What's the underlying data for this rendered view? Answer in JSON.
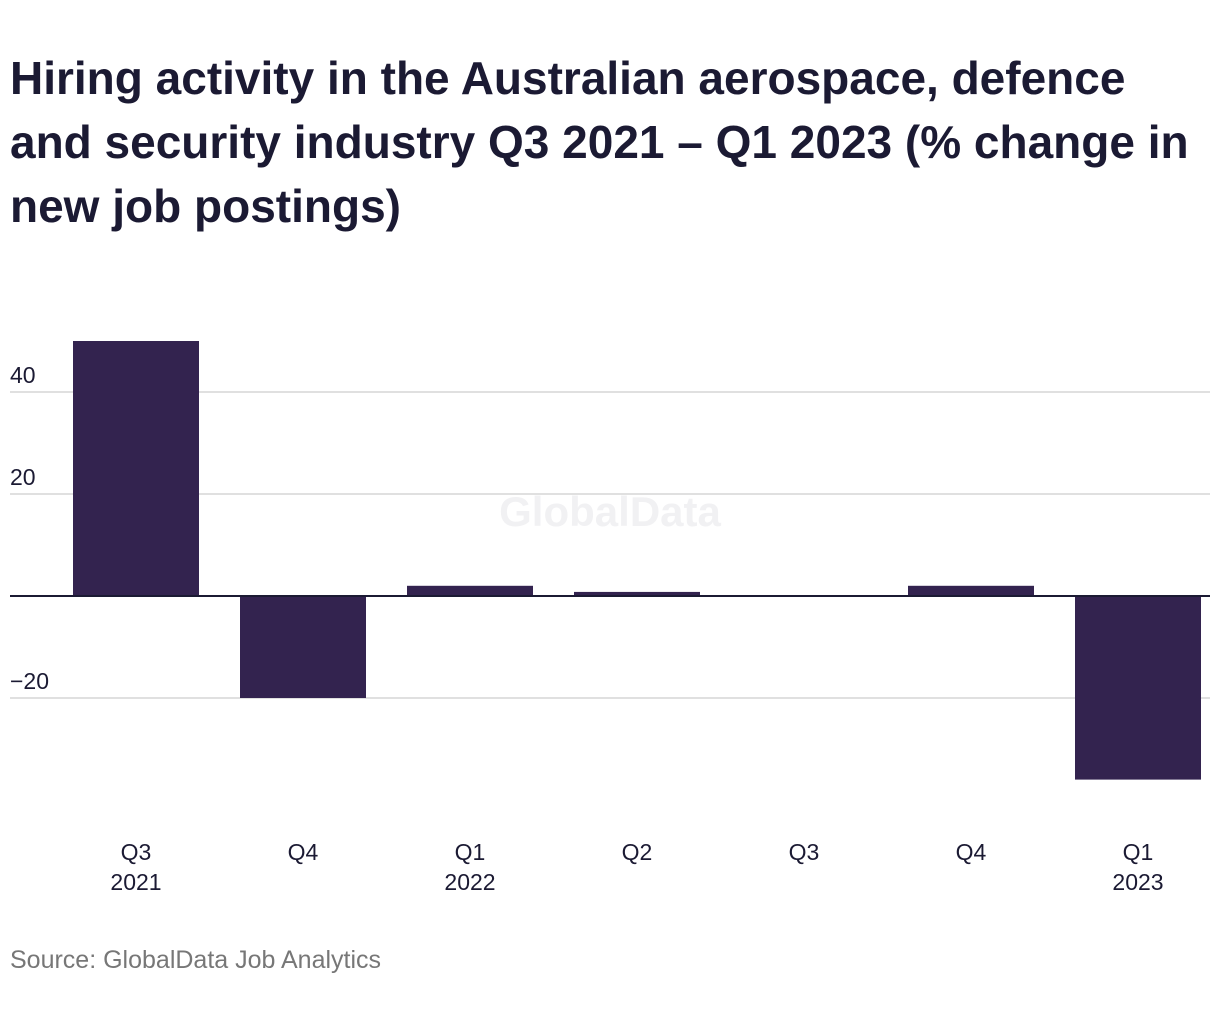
{
  "chart_data": {
    "type": "bar",
    "title": "Hiring activity in the Australian aerospace, defence and security industry Q3 2021 – Q1 2023 (% change in new job postings)",
    "categories": [
      {
        "label": "Q3",
        "year": "2021"
      },
      {
        "label": "Q4",
        "year": ""
      },
      {
        "label": "Q1",
        "year": "2022"
      },
      {
        "label": "Q2",
        "year": ""
      },
      {
        "label": "Q3",
        "year": ""
      },
      {
        "label": "Q4",
        "year": ""
      },
      {
        "label": "Q1",
        "year": "2023"
      }
    ],
    "values": [
      50,
      -20,
      2,
      0.8,
      0,
      2,
      -36
    ],
    "yticks": [
      40,
      20,
      -20
    ],
    "ytick_labels": [
      "40",
      "20",
      "−20"
    ],
    "ylim": [
      -43,
      55
    ],
    "grid": true,
    "bar_color": "#33234f",
    "watermark": "GlobalData",
    "source": "Source: GlobalData Job Analytics"
  }
}
